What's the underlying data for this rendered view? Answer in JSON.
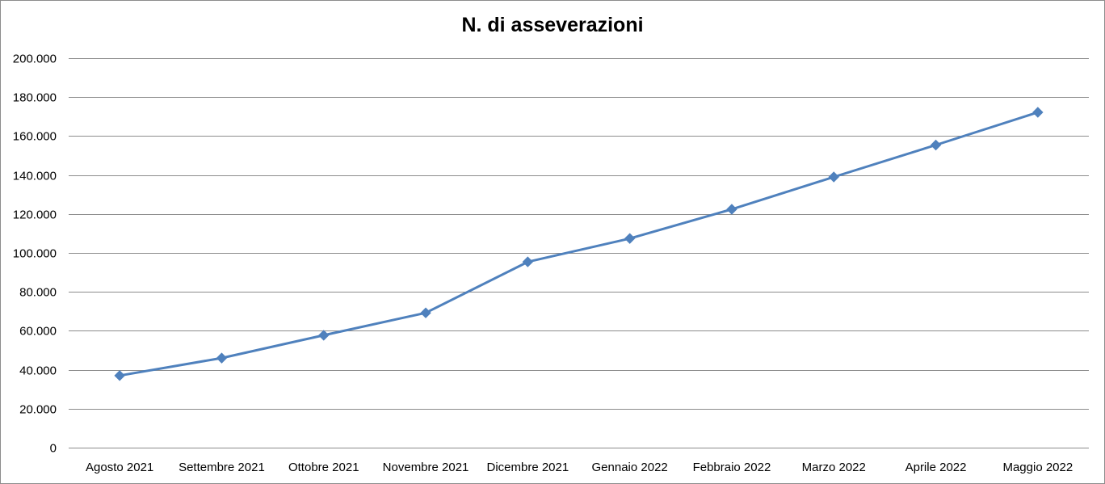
{
  "chart_data": {
    "type": "line",
    "title": "N. di asseverazioni",
    "xlabel": "",
    "ylabel": "",
    "categories": [
      "Agosto 2021",
      "Settembre 2021",
      "Ottobre 2021",
      "Novembre 2021",
      "Dicembre 2021",
      "Gennaio 2022",
      "Febbraio 2022",
      "Marzo 2022",
      "Aprile 2022",
      "Maggio 2022"
    ],
    "series": [
      {
        "values": [
          37000,
          46000,
          57700,
          69200,
          95400,
          107400,
          122400,
          139000,
          155400,
          172200
        ],
        "color": "#4f81bd",
        "marker": "diamond"
      }
    ],
    "ylim": [
      0,
      200000
    ],
    "yticks": [
      0,
      20000,
      40000,
      60000,
      80000,
      100000,
      120000,
      140000,
      160000,
      180000,
      200000
    ],
    "ytick_labels": [
      "0",
      "20.000",
      "40.000",
      "60.000",
      "80.000",
      "100.000",
      "120.000",
      "140.000",
      "160.000",
      "180.000",
      "200.000"
    ],
    "grid": true,
    "legend": "none"
  }
}
